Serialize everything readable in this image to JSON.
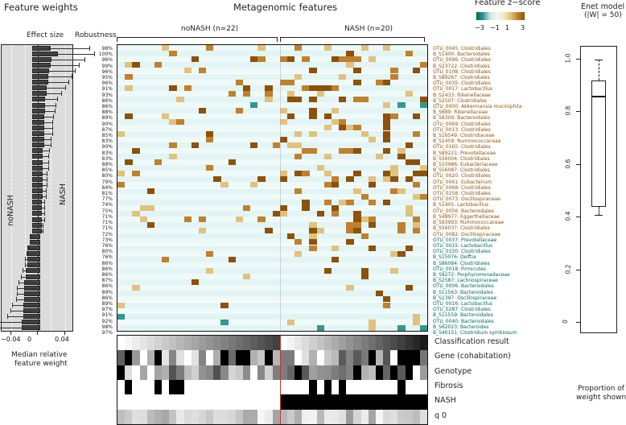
{
  "titles": {
    "feature_weights": "Feature weights",
    "metagenomic_features": "Metagenomic features",
    "zscore_legend": "Feature z−score",
    "enet_model": "Enet model",
    "enet_sub": "(|W| = 50)",
    "effect_size": "Effect size",
    "robustness": "Robustness",
    "nonash_group": "noNASH (n=22)",
    "nash_group": "NASH (n=20)",
    "weights_xlabel_1": "Median relative",
    "weights_xlabel_2": "feature weight",
    "boxplot_xlabel_1": "Proportion of",
    "boxplot_xlabel_2": "weight shown",
    "side_nonash": "noNASH",
    "side_nash": "NASH"
  },
  "legend": {
    "ticks": [
      "−3",
      "−1",
      "1",
      "3"
    ],
    "colors": [
      "#01665e",
      "#35978f",
      "#c7eae5",
      "#f5f5f5",
      "#f6e8c3",
      "#dfc27d",
      "#bf812d",
      "#8c510a"
    ]
  },
  "weights_axis": {
    "ticks": [
      "−0.04",
      "0",
      "0.04"
    ]
  },
  "boxplot_axis": {
    "ticks": [
      "0",
      "0.2",
      "0.4",
      "0.6",
      "0.8",
      "1.0"
    ]
  },
  "meta_rows": [
    "Classification result",
    "Gene (cohabitation)",
    "Genotype",
    "Fibrosis",
    "NASH",
    "q 0"
  ],
  "chart_data": [
    {
      "type": "bar",
      "title": "Feature weights",
      "xlabel": "Median relative feature weight",
      "xlim": [
        -0.05,
        0.05
      ],
      "features": [
        "OTU_0045: Clostridiales",
        "B_S1400: Bacteroidales",
        "OTU_0096: Clostridiales",
        "B_S23722: Clostridiales",
        "OTU_0108: Clostridiales",
        "B_S89267: Clostridiales",
        "OTU_0035: Clostridiales",
        "OTU_0017: Lactobacillus",
        "B_S2433: Rikenellaceae",
        "B_S2507: Clostridiales",
        "OTU_0000: Akkermansia muciniphila",
        "B_S689: Rikenellaceae",
        "B_S8309: Bacteroidales",
        "OTU_0069: Clostridiales",
        "OTU_0013: Clostridiales",
        "B_S16549: Clostridiaceae",
        "B_S2459: Ruminococcaceae",
        "OTU_0165: Clostridiales",
        "B_S89221: Prevotellaceae",
        "B_S56004: Clostridiales",
        "B_S33986: Eubacteriaceae",
        "B_S56087: Clostridiales",
        "OTU_0020: Clostridiales",
        "OTU_0041: Eubacterium",
        "OTU_0068: Clostridiales",
        "OTU_0258: Clostridiales",
        "OTU_0073: Oscillospiraceae",
        "B_S1405: Lactobacillus",
        "OTU_0056: Bacteroidales",
        "B_S48977: Eggerthellaceae",
        "B_S93993: Ruminococcaceae",
        "B_S56037: Clostridiales",
        "OTU_0082: Oscillospiraceae",
        "OTU_0037: Prevotellaceae",
        "OTU_0015: Lactobacillus",
        "OTU_0330: Clostridiales",
        "B_S15076: Delftia",
        "B_S86084: Clostridiales",
        "OTU_0018: Firmicutes",
        "B_S9272: Porphyromonadaceae",
        "B_S2587: Lachnospiraceae",
        "OTU_0006: Bacteroidales",
        "B_S11563: Bacteroidales",
        "B_S1397: Oscillospiraceae",
        "OTU_0016: Lactobacillus",
        "OTU_0287: Clostridiales",
        "B_S11559: Bacteroidales",
        "OTU_0040: Bacteroidales",
        "B_S62023: Bacteroides",
        "B_S40151: Clostridium symbiosum"
      ],
      "robustness": [
        "98%",
        "100%",
        "96%",
        "99%",
        "96%",
        "95%",
        "96%",
        "91%",
        "93%",
        "86%",
        "86%",
        "88%",
        "89%",
        "90%",
        "87%",
        "85%",
        "83%",
        "90%",
        "83%",
        "83%",
        "88%",
        "85%",
        "80%",
        "79%",
        "84%",
        "81%",
        "77%",
        "74%",
        "75%",
        "71%",
        "71%",
        "71%",
        "72%",
        "73%",
        "76%",
        "80%",
        "76%",
        "86%",
        "86%",
        "86%",
        "87%",
        "86%",
        "89%",
        "86%",
        "89%",
        "97%",
        "91%",
        "92%",
        "98%",
        "97%"
      ],
      "values": [
        0.008,
        0.014,
        0.009,
        0.008,
        0.007,
        0.006,
        0.006,
        0.005,
        0.005,
        0.004,
        0.004,
        0.004,
        0.003,
        0.003,
        0.003,
        0.003,
        0.003,
        0.003,
        0.002,
        0.002,
        0.002,
        0.002,
        0.002,
        0.002,
        0.002,
        0.002,
        0.002,
        0.001,
        0.001,
        0.001,
        0.001,
        0.001,
        0.001,
        -0.002,
        -0.002,
        -0.003,
        -0.004,
        -0.004,
        -0.004,
        -0.005,
        -0.005,
        -0.006,
        -0.006,
        -0.006,
        -0.006,
        -0.007,
        -0.007,
        -0.007,
        -0.008,
        -0.008
      ],
      "errors": [
        0.032,
        0.03,
        0.027,
        0.024,
        0.022,
        0.02,
        0.018,
        0.016,
        0.013,
        0.011,
        0.01,
        0.009,
        0.009,
        0.008,
        0.008,
        0.008,
        0.007,
        0.007,
        0.007,
        0.006,
        0.006,
        0.006,
        0.005,
        0.005,
        0.005,
        0.004,
        0.004,
        0.004,
        0.004,
        0.004,
        0.004,
        0.003,
        0.003,
        0.003,
        0.004,
        0.005,
        0.005,
        0.006,
        0.006,
        0.007,
        0.008,
        0.009,
        0.01,
        0.01,
        0.011,
        0.013,
        0.014,
        0.017,
        0.026,
        0.027
      ],
      "label_groups": {
        "nash_enriched_count": 33,
        "nash_color": "#8c510a",
        "nonash_color": "#01665e"
      }
    },
    {
      "type": "heatmap",
      "title": "Metagenomic features",
      "groups": [
        {
          "name": "noNASH",
          "n": 22
        },
        {
          "name": "NASH",
          "n": 20
        }
      ],
      "colorbar": {
        "label": "Feature z-score",
        "range": [
          -3,
          3
        ]
      },
      "rows": 50,
      "columns": 42
    },
    {
      "type": "bar",
      "title": "Enet model (|W| = 50)",
      "subtype": "boxplot",
      "ylabel": "Proportion of weight shown",
      "ylim": [
        0,
        1.0
      ],
      "min": 0.41,
      "q1": 0.44,
      "median": 0.86,
      "q3": 0.92,
      "max": 1.0
    }
  ]
}
